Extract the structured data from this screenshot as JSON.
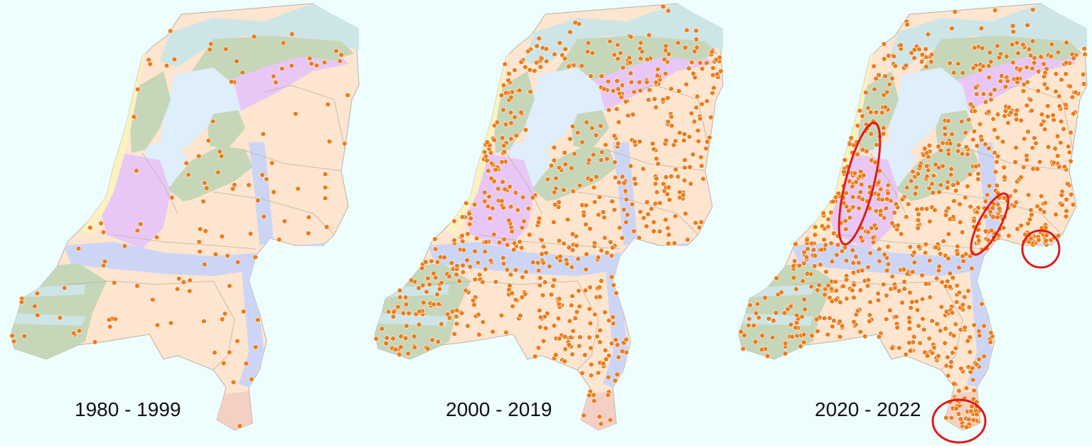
{
  "periods": [
    {
      "label": "1980 - 1999",
      "density": 0.12,
      "highlighted_areas": []
    },
    {
      "label": "2000 - 2019",
      "density": 0.72,
      "highlighted_areas": []
    },
    {
      "label": "2020 - 2022",
      "density": 0.85,
      "highlighted_areas": [
        "north-holland-coast",
        "veluwe-east",
        "achterhoek",
        "south-limburg"
      ]
    }
  ],
  "colors": {
    "sea": "#eefeff",
    "wadden": "#cde5e6",
    "lakes": "#dfeefb",
    "sand": "#fde5cf",
    "peat": "#e8c7f6",
    "clay": "#c6d6b9",
    "river": "#ccd5f6",
    "dunes": "#fbf2c0",
    "limburg": "#f4cfc4",
    "dots": "#ec7c1a",
    "dot_edge": "#ffffff",
    "highlight": "#e11a1a",
    "border": "#b8b2a6"
  }
}
